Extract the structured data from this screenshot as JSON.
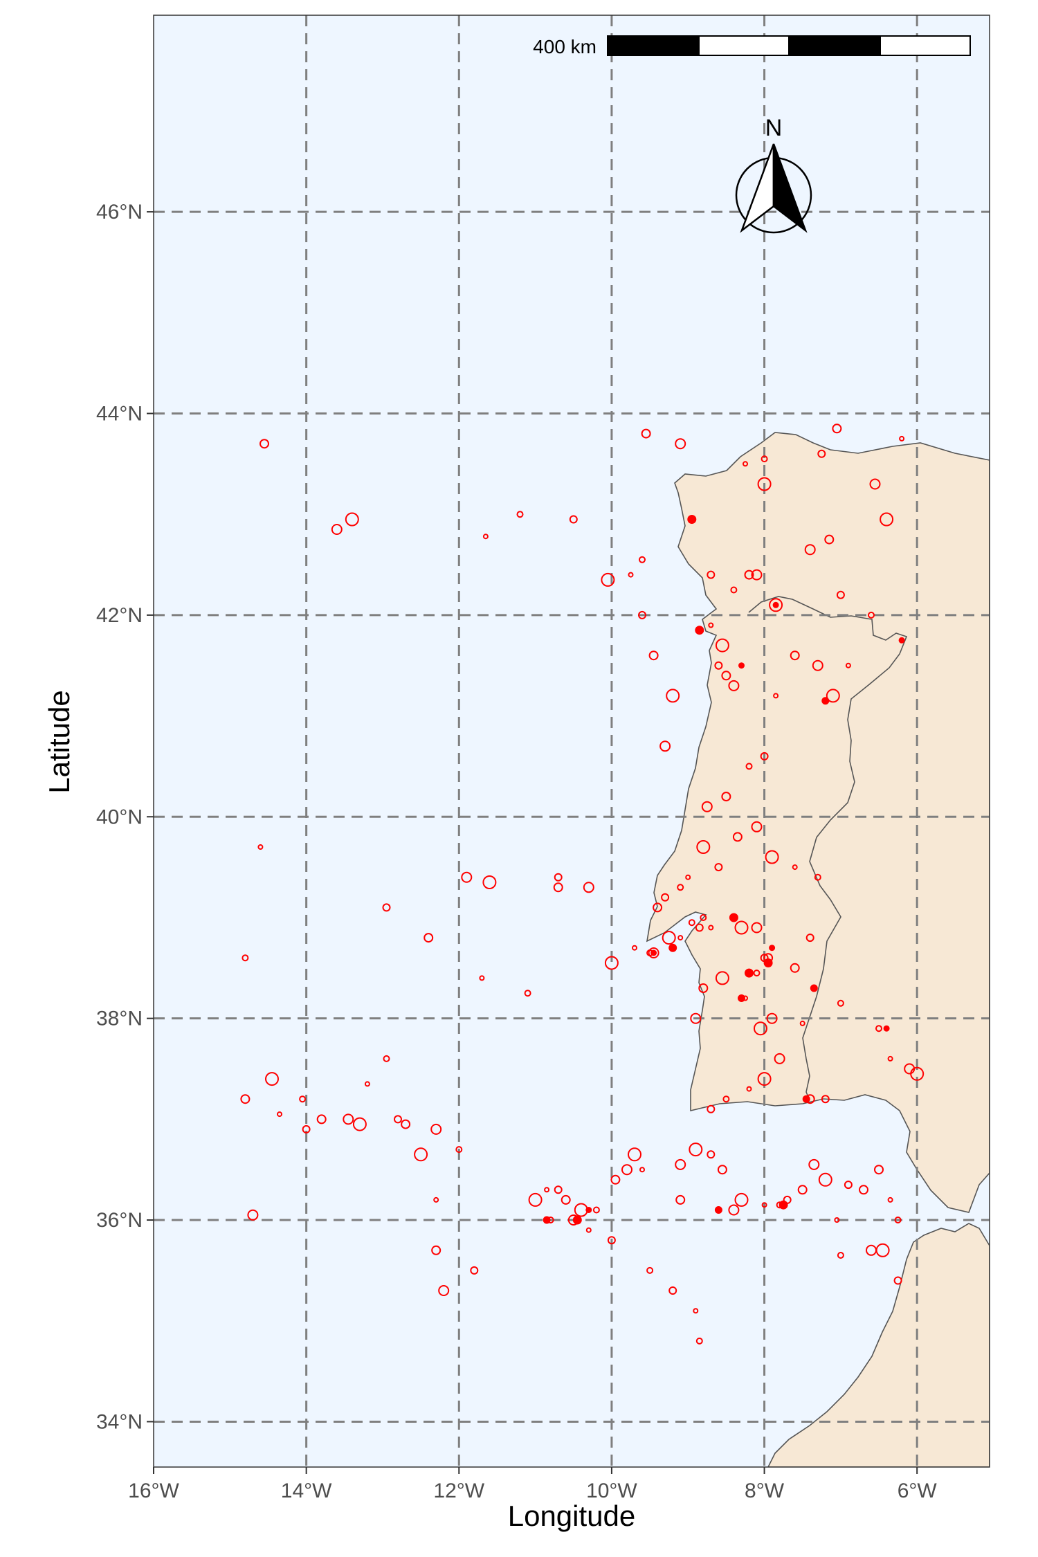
{
  "map": {
    "x_axis_title": "Longitude",
    "y_axis_title": "Latitude",
    "x_ticks": [
      "16°W",
      "14°W",
      "12°W",
      "10°W",
      "8°W",
      "6°W"
    ],
    "y_ticks": [
      "34°N",
      "36°N",
      "38°N",
      "40°N",
      "42°N",
      "44°N",
      "46°N"
    ],
    "scale_bar_label": "400 km",
    "north_arrow_label": "N",
    "colors": {
      "ocean": "#eef6ff",
      "land": "#f7e8d5",
      "coastline": "#555555",
      "points": "#ff0000",
      "grid": "#7f7f7f"
    }
  },
  "chart_data": {
    "type": "scatter",
    "title": "",
    "xlabel": "Longitude",
    "ylabel": "Latitude",
    "xlim": [
      -16,
      -5.05
    ],
    "ylim": [
      33.55,
      47.95
    ],
    "grid": true,
    "series": [
      {
        "marker": "open-circle",
        "points": [
          [
            -14.55,
            43.7
          ],
          [
            -13.6,
            42.85
          ],
          [
            -13.4,
            42.95
          ],
          [
            -11.65,
            42.78
          ],
          [
            -11.2,
            43.0
          ],
          [
            -10.5,
            42.95
          ],
          [
            -9.55,
            43.8
          ],
          [
            -9.1,
            43.7
          ],
          [
            -10.05,
            42.35
          ],
          [
            -9.75,
            42.4
          ],
          [
            -9.6,
            42.55
          ],
          [
            -9.6,
            42.0
          ],
          [
            -9.45,
            41.6
          ],
          [
            -9.3,
            40.7
          ],
          [
            -9.2,
            41.2
          ],
          [
            -14.6,
            39.7
          ],
          [
            -14.8,
            38.6
          ],
          [
            -12.95,
            39.1
          ],
          [
            -12.4,
            38.8
          ],
          [
            -11.9,
            39.4
          ],
          [
            -11.6,
            39.35
          ],
          [
            -11.7,
            38.4
          ],
          [
            -11.1,
            38.25
          ],
          [
            -10.7,
            39.4
          ],
          [
            -10.7,
            39.3
          ],
          [
            -10.3,
            39.3
          ],
          [
            -10.0,
            38.55
          ],
          [
            -9.7,
            38.7
          ],
          [
            -9.5,
            38.65
          ],
          [
            -9.2,
            38.7
          ],
          [
            -14.8,
            37.2
          ],
          [
            -14.7,
            36.05
          ],
          [
            -14.45,
            37.4
          ],
          [
            -14.35,
            37.05
          ],
          [
            -14.05,
            37.2
          ],
          [
            -14.0,
            36.9
          ],
          [
            -13.8,
            37.0
          ],
          [
            -13.45,
            37.0
          ],
          [
            -13.3,
            36.95
          ],
          [
            -13.2,
            37.35
          ],
          [
            -12.95,
            37.6
          ],
          [
            -12.8,
            37.0
          ],
          [
            -12.7,
            36.95
          ],
          [
            -12.3,
            36.9
          ],
          [
            -12.5,
            36.65
          ],
          [
            -12.3,
            36.2
          ],
          [
            -12.0,
            36.7
          ],
          [
            -11.8,
            35.5
          ],
          [
            -12.3,
            35.7
          ],
          [
            -12.2,
            35.3
          ],
          [
            -11.0,
            36.2
          ],
          [
            -10.85,
            36.3
          ],
          [
            -10.8,
            36.0
          ],
          [
            -10.7,
            36.3
          ],
          [
            -10.6,
            36.2
          ],
          [
            -10.5,
            36.0
          ],
          [
            -10.4,
            36.1
          ],
          [
            -10.3,
            35.9
          ],
          [
            -10.2,
            36.1
          ],
          [
            -10.0,
            35.8
          ],
          [
            -9.95,
            36.4
          ],
          [
            -9.8,
            36.5
          ],
          [
            -9.7,
            36.65
          ],
          [
            -9.6,
            36.5
          ],
          [
            -9.5,
            35.5
          ],
          [
            -9.2,
            35.3
          ],
          [
            -9.1,
            36.2
          ],
          [
            -9.1,
            36.55
          ],
          [
            -8.9,
            36.7
          ],
          [
            -8.9,
            35.1
          ],
          [
            -8.85,
            34.8
          ],
          [
            -8.7,
            36.65
          ],
          [
            -8.55,
            36.5
          ],
          [
            -8.4,
            36.1
          ],
          [
            -8.3,
            36.2
          ],
          [
            -8.0,
            36.15
          ],
          [
            -7.8,
            36.15
          ],
          [
            -7.7,
            36.2
          ],
          [
            -7.5,
            36.3
          ],
          [
            -7.35,
            36.55
          ],
          [
            -7.2,
            36.4
          ],
          [
            -7.05,
            36.0
          ],
          [
            -7.0,
            35.65
          ],
          [
            -6.9,
            36.35
          ],
          [
            -6.7,
            36.3
          ],
          [
            -6.6,
            35.7
          ],
          [
            -6.45,
            35.7
          ],
          [
            -6.35,
            36.2
          ],
          [
            -6.25,
            36.0
          ],
          [
            -6.25,
            35.4
          ],
          [
            -6.5,
            36.5
          ],
          [
            -6.1,
            37.5
          ],
          [
            -6.0,
            37.45
          ],
          [
            -6.35,
            37.6
          ],
          [
            -6.5,
            37.9
          ],
          [
            -7.2,
            37.2
          ],
          [
            -7.4,
            37.2
          ],
          [
            -7.8,
            37.6
          ],
          [
            -8.0,
            37.4
          ],
          [
            -8.2,
            37.3
          ],
          [
            -8.5,
            37.2
          ],
          [
            -8.7,
            37.1
          ],
          [
            -8.8,
            38.3
          ],
          [
            -8.9,
            38.0
          ],
          [
            -8.55,
            38.4
          ],
          [
            -8.25,
            38.2
          ],
          [
            -8.1,
            38.45
          ],
          [
            -8.0,
            38.6
          ],
          [
            -7.95,
            38.6
          ],
          [
            -8.1,
            38.9
          ],
          [
            -8.3,
            38.9
          ],
          [
            -8.7,
            38.9
          ],
          [
            -8.8,
            39.0
          ],
          [
            -8.6,
            39.5
          ],
          [
            -8.35,
            39.8
          ],
          [
            -8.1,
            39.9
          ],
          [
            -7.9,
            39.6
          ],
          [
            -7.6,
            39.5
          ],
          [
            -7.3,
            39.4
          ],
          [
            -7.4,
            38.8
          ],
          [
            -7.6,
            38.5
          ],
          [
            -7.9,
            38.0
          ],
          [
            -8.05,
            37.9
          ],
          [
            -7.5,
            37.95
          ],
          [
            -7.0,
            38.15
          ],
          [
            -8.6,
            41.5
          ],
          [
            -8.5,
            41.4
          ],
          [
            -8.4,
            41.3
          ],
          [
            -8.55,
            41.7
          ],
          [
            -8.7,
            41.9
          ],
          [
            -8.4,
            42.25
          ],
          [
            -8.7,
            42.4
          ],
          [
            -8.2,
            42.4
          ],
          [
            -8.1,
            42.4
          ],
          [
            -7.85,
            42.1
          ],
          [
            -7.85,
            41.2
          ],
          [
            -8.2,
            40.5
          ],
          [
            -8.0,
            40.6
          ],
          [
            -8.5,
            40.2
          ],
          [
            -8.75,
            40.1
          ],
          [
            -8.8,
            39.7
          ],
          [
            -9.0,
            39.4
          ],
          [
            -9.1,
            39.3
          ],
          [
            -9.3,
            39.2
          ],
          [
            -9.4,
            39.1
          ],
          [
            -9.45,
            38.65
          ],
          [
            -9.25,
            38.8
          ],
          [
            -9.1,
            38.8
          ],
          [
            -8.95,
            38.95
          ],
          [
            -8.85,
            38.9
          ],
          [
            -7.6,
            41.6
          ],
          [
            -7.3,
            41.5
          ],
          [
            -7.1,
            41.2
          ],
          [
            -6.9,
            41.5
          ],
          [
            -6.6,
            42.0
          ],
          [
            -7.0,
            42.2
          ],
          [
            -7.15,
            42.75
          ],
          [
            -7.4,
            42.65
          ],
          [
            -8.0,
            43.3
          ],
          [
            -8.25,
            43.5
          ],
          [
            -8.0,
            43.55
          ],
          [
            -7.25,
            43.6
          ],
          [
            -7.05,
            43.85
          ],
          [
            -6.55,
            43.3
          ],
          [
            -6.4,
            42.95
          ],
          [
            -6.2,
            43.75
          ]
        ]
      },
      {
        "marker": "filled-dot",
        "points": [
          [
            -6.2,
            41.75
          ],
          [
            -9.2,
            38.7
          ],
          [
            -7.95,
            38.55
          ],
          [
            -6.4,
            37.9
          ],
          [
            -7.45,
            37.2
          ],
          [
            -8.95,
            42.95
          ],
          [
            -7.85,
            42.1
          ],
          [
            -10.85,
            36.0
          ],
          [
            -10.45,
            36.0
          ],
          [
            -10.3,
            36.1
          ],
          [
            -8.6,
            36.1
          ],
          [
            -7.75,
            36.15
          ],
          [
            -8.3,
            41.5
          ],
          [
            -8.3,
            38.2
          ],
          [
            -8.4,
            39.0
          ],
          [
            -9.45,
            38.65
          ],
          [
            -7.35,
            38.3
          ],
          [
            -8.2,
            38.45
          ],
          [
            -7.9,
            38.7
          ],
          [
            -7.2,
            41.15
          ],
          [
            -8.85,
            41.85
          ]
        ]
      }
    ],
    "land_regions": [
      "Iberian Peninsula",
      "North Africa"
    ],
    "scale_bar": "400 km",
    "north_arrow": "N"
  }
}
